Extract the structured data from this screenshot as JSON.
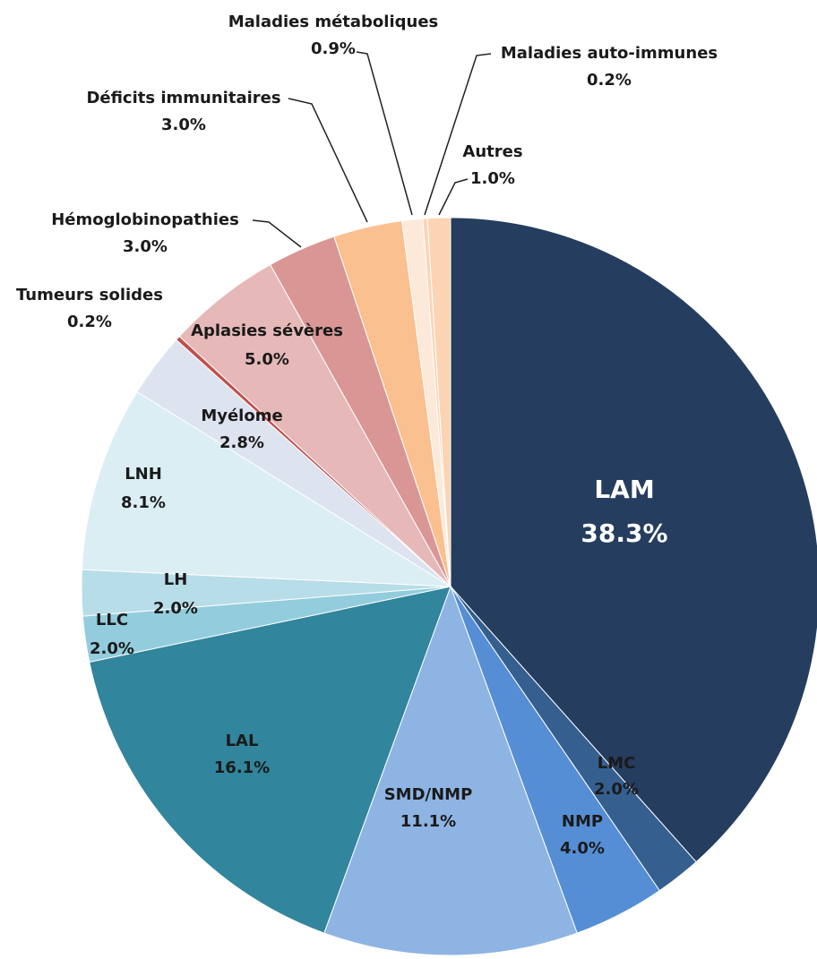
{
  "chart_data": {
    "type": "pie",
    "categories": [
      "LAM",
      "LMC",
      "NMP",
      "SMD/NMP",
      "LAL",
      "LLC",
      "LH",
      "LNH",
      "Myélome",
      "Tumeurs solides",
      "Aplasies sévères",
      "Hémoglobinopathies",
      "Déficits immunitaires",
      "Maladies métaboliques",
      "Maladies auto-immunes",
      "Autres"
    ],
    "values": [
      38.3,
      2.0,
      4.0,
      11.1,
      16.1,
      2.0,
      2.0,
      8.1,
      2.8,
      0.2,
      5.0,
      3.0,
      3.0,
      0.9,
      0.2,
      1.0
    ],
    "value_labels": [
      "38.3%",
      "2.0%",
      "4.0%",
      "11.1%",
      "16.1%",
      "2.0%",
      "2.0%",
      "8.1%",
      "2.8%",
      "0.2%",
      "5.0%",
      "3.0%",
      "3.0%",
      "0.9%",
      "0.2%",
      "1.0%"
    ],
    "colors": [
      "#253d5e",
      "#355f8f",
      "#558ed5",
      "#8eb4e3",
      "#31859c",
      "#93cddd",
      "#b7dde8",
      "#dbeef4",
      "#dde3ef",
      "#c0504d",
      "#e6b9b8",
      "#d99694",
      "#fac090",
      "#fde9d9",
      "#fcd5b5",
      "#fbd4b4"
    ]
  }
}
